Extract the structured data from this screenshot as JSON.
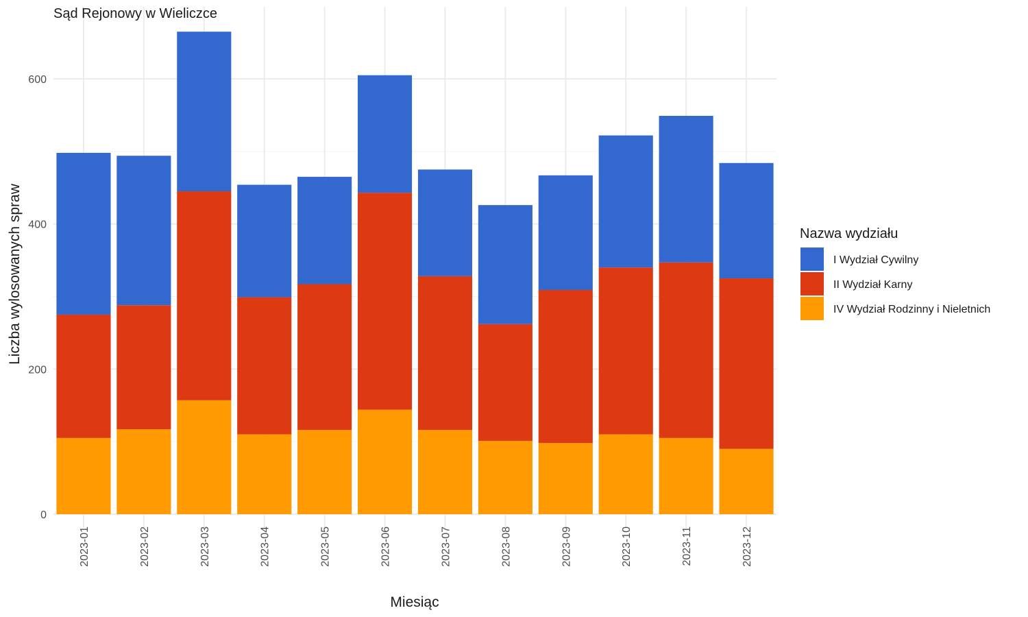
{
  "chart_data": {
    "type": "bar",
    "stacked": true,
    "title": "Sąd Rejonowy w Wieliczce",
    "xlabel": "Miesiąc",
    "ylabel": "Liczba wylosowanych spraw",
    "ylim": [
      0,
      700
    ],
    "yticks": [
      0,
      200,
      400,
      600
    ],
    "grid": true,
    "legend": {
      "title": "Nazwa wydziału",
      "position": "right"
    },
    "categories": [
      "2023-01",
      "2023-02",
      "2023-03",
      "2023-04",
      "2023-05",
      "2023-06",
      "2023-07",
      "2023-08",
      "2023-09",
      "2023-10",
      "2023-11",
      "2023-12"
    ],
    "series": [
      {
        "name": "IV Wydział Rodzinny i Nieletnich",
        "color": "#FF9A00",
        "values": [
          105,
          117,
          157,
          110,
          116,
          144,
          116,
          101,
          98,
          110,
          105,
          90
        ]
      },
      {
        "name": "II Wydział Karny",
        "color": "#DD3A13",
        "values": [
          170,
          171,
          288,
          189,
          201,
          299,
          212,
          161,
          211,
          230,
          242,
          235
        ]
      },
      {
        "name": "I Wydział Cywilny",
        "color": "#3369CE",
        "values": [
          223,
          206,
          220,
          155,
          148,
          162,
          147,
          164,
          158,
          182,
          202,
          159
        ]
      }
    ],
    "legend_order": [
      "I Wydział Cywilny",
      "II Wydział Karny",
      "IV Wydział Rodzinny i Nieletnich"
    ]
  }
}
